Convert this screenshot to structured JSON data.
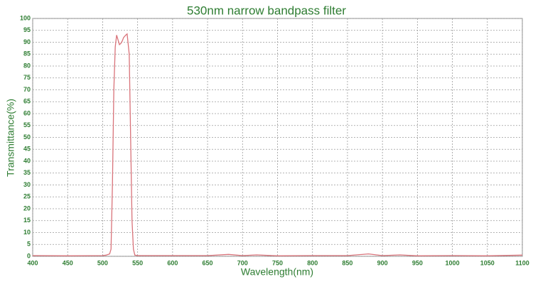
{
  "chart_data": {
    "type": "line",
    "title": "530nm narrow bandpass filter",
    "x_label": "Wavelength(nm)",
    "y_label": "Transmittance(%)",
    "x": [
      400,
      450,
      500,
      505,
      510,
      512,
      514,
      516,
      518,
      520,
      522,
      524,
      526,
      528,
      530,
      533,
      535,
      538,
      540,
      542,
      544,
      546,
      550,
      600,
      650,
      680,
      700,
      720,
      750,
      800,
      850,
      880,
      900,
      925,
      950,
      1000,
      1050,
      1100
    ],
    "values": [
      0.3,
      0.2,
      0.3,
      0.5,
      1,
      3,
      30,
      70,
      88,
      93,
      91,
      89,
      89.5,
      90.5,
      92,
      93,
      93.5,
      85,
      50,
      15,
      3,
      0.5,
      0.3,
      0.3,
      0.3,
      0.8,
      0.3,
      0.6,
      0.2,
      0.3,
      0.3,
      1.0,
      0.3,
      0.6,
      0.2,
      0.3,
      0.2,
      0.5
    ],
    "color": "#d9737a",
    "xlim": [
      400,
      1100
    ],
    "xticks": [
      400,
      450,
      500,
      550,
      600,
      650,
      700,
      750,
      800,
      850,
      900,
      950,
      1000,
      1050,
      1100
    ],
    "ylim": [
      0,
      100
    ],
    "yticks": [
      0,
      5,
      10,
      15,
      20,
      25,
      30,
      35,
      40,
      45,
      50,
      55,
      60,
      65,
      70,
      75,
      80,
      85,
      90,
      95,
      100
    ],
    "grid": true
  }
}
